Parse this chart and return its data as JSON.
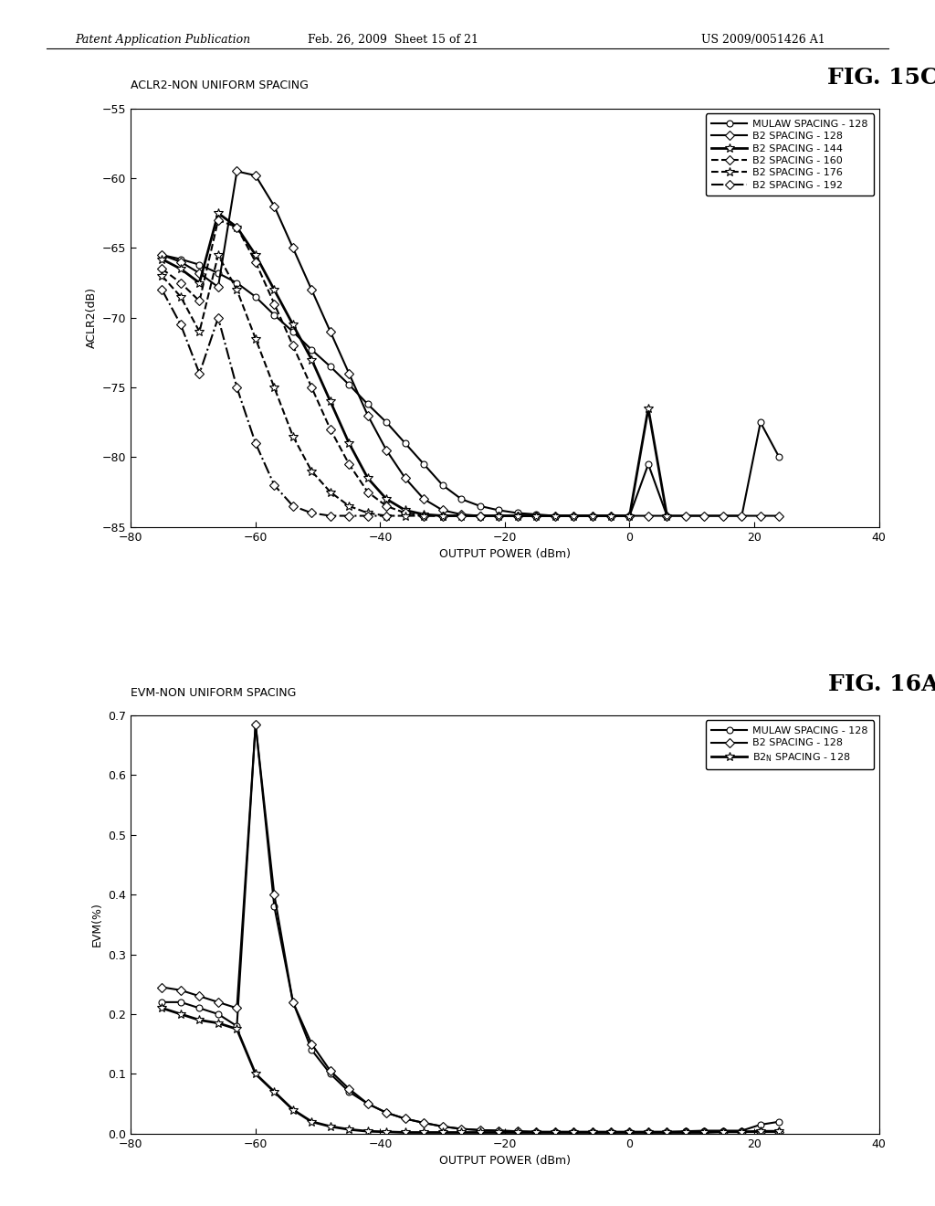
{
  "fig_width": 10.24,
  "fig_height": 13.2,
  "bg_color": "#ffffff",
  "header_left": "Patent Application Publication",
  "header_mid": "Feb. 26, 2009  Sheet 15 of 21",
  "header_right": "US 2009/0051426 A1",
  "plot1": {
    "title": "ACLR2-NON UNIFORM SPACING",
    "fig_label": "FIG. 15C",
    "xlabel": "OUTPUT POWER (dBm)",
    "ylabel": "ACLR2(dB)",
    "xlim": [
      -80,
      40
    ],
    "ylim": [
      -85,
      -55
    ],
    "xticks": [
      -80,
      -60,
      -40,
      -20,
      0,
      20,
      40
    ],
    "yticks": [
      -85,
      -80,
      -75,
      -70,
      -65,
      -60,
      -55
    ],
    "series": [
      {
        "label": "MULAW SPACING - 128",
        "linestyle": "-",
        "marker": "o",
        "color": "#000000",
        "linewidth": 1.5,
        "markersize": 5,
        "x": [
          -75,
          -72,
          -69,
          -66,
          -63,
          -60,
          -57,
          -54,
          -51,
          -48,
          -45,
          -42,
          -39,
          -36,
          -33,
          -30,
          -27,
          -24,
          -21,
          -18,
          -15,
          -12,
          -9,
          -6,
          -3,
          0,
          3,
          6,
          9,
          12,
          15,
          18,
          21,
          24
        ],
        "y": [
          -65.5,
          -65.8,
          -66.2,
          -66.8,
          -67.5,
          -68.5,
          -69.8,
          -71.0,
          -72.3,
          -73.5,
          -74.8,
          -76.2,
          -77.5,
          -79.0,
          -80.5,
          -82.0,
          -83.0,
          -83.5,
          -83.8,
          -84.0,
          -84.1,
          -84.2,
          -84.2,
          -84.2,
          -84.2,
          -84.2,
          -80.5,
          -84.2,
          -84.2,
          -84.2,
          -84.2,
          -84.2,
          -77.5,
          -80.0
        ]
      },
      {
        "label": "B2 SPACING - 128",
        "linestyle": "-",
        "marker": "D",
        "color": "#000000",
        "linewidth": 1.5,
        "markersize": 5,
        "x": [
          -75,
          -72,
          -69,
          -66,
          -63,
          -60,
          -57,
          -54,
          -51,
          -48,
          -45,
          -42,
          -39,
          -36,
          -33,
          -30,
          -27,
          -24,
          -21,
          -18,
          -15,
          -12,
          -9,
          -6,
          -3,
          0,
          3,
          6,
          9,
          12,
          15,
          18,
          21,
          24
        ],
        "y": [
          -65.5,
          -66.0,
          -66.8,
          -67.8,
          -59.5,
          -59.8,
          -62.0,
          -65.0,
          -68.0,
          -71.0,
          -74.0,
          -77.0,
          -79.5,
          -81.5,
          -83.0,
          -83.8,
          -84.1,
          -84.2,
          -84.2,
          -84.2,
          -84.2,
          -84.2,
          -84.2,
          -84.2,
          -84.2,
          -84.2,
          -84.2,
          -84.2,
          -84.2,
          -84.2,
          -84.2,
          -84.2,
          -84.2,
          -84.2
        ]
      },
      {
        "label": "B2 SPACING - 144",
        "linestyle": "-",
        "marker": "*",
        "color": "#000000",
        "linewidth": 2.0,
        "markersize": 7,
        "x": [
          -75,
          -72,
          -69,
          -66,
          -63,
          -60,
          -57,
          -54,
          -51,
          -48,
          -45,
          -42,
          -39,
          -36,
          -33,
          -30,
          -27,
          -24,
          -21,
          -18,
          -15,
          -12,
          -9,
          -6,
          -3,
          0,
          3,
          6
        ],
        "y": [
          -65.8,
          -66.5,
          -67.5,
          -62.5,
          -63.5,
          -65.5,
          -68.0,
          -70.5,
          -73.0,
          -76.0,
          -79.0,
          -81.5,
          -83.0,
          -83.8,
          -84.1,
          -84.2,
          -84.2,
          -84.2,
          -84.2,
          -84.2,
          -84.2,
          -84.2,
          -84.2,
          -84.2,
          -84.2,
          -84.2,
          -76.5,
          -84.2
        ]
      },
      {
        "label": "B2 SPACING - 160",
        "linestyle": "--",
        "marker": "D",
        "color": "#000000",
        "linewidth": 1.5,
        "markersize": 5,
        "x": [
          -75,
          -72,
          -69,
          -66,
          -63,
          -60,
          -57,
          -54,
          -51,
          -48,
          -45,
          -42,
          -39,
          -36,
          -33,
          -30,
          -27,
          -24
        ],
        "y": [
          -66.5,
          -67.5,
          -68.8,
          -63.0,
          -63.5,
          -66.0,
          -69.0,
          -72.0,
          -75.0,
          -78.0,
          -80.5,
          -82.5,
          -83.5,
          -84.0,
          -84.2,
          -84.2,
          -84.2,
          -84.2
        ]
      },
      {
        "label": "B2 SPACING - 176",
        "linestyle": "--",
        "marker": "*",
        "color": "#000000",
        "linewidth": 1.5,
        "markersize": 7,
        "x": [
          -75,
          -72,
          -69,
          -66,
          -63,
          -60,
          -57,
          -54,
          -51,
          -48,
          -45,
          -42,
          -39,
          -36,
          -33,
          -30
        ],
        "y": [
          -67.0,
          -68.5,
          -71.0,
          -65.5,
          -68.0,
          -71.5,
          -75.0,
          -78.5,
          -81.0,
          -82.5,
          -83.5,
          -84.0,
          -84.2,
          -84.2,
          -84.2,
          -84.2
        ]
      },
      {
        "label": "B2 SPACING - 192",
        "linestyle": "-.",
        "marker": "D",
        "color": "#000000",
        "linewidth": 1.5,
        "markersize": 5,
        "x": [
          -75,
          -72,
          -69,
          -66,
          -63,
          -60,
          -57,
          -54,
          -51,
          -48,
          -45,
          -42,
          -39
        ],
        "y": [
          -68.0,
          -70.5,
          -74.0,
          -70.0,
          -75.0,
          -79.0,
          -82.0,
          -83.5,
          -84.0,
          -84.2,
          -84.2,
          -84.2,
          -84.2
        ]
      }
    ]
  },
  "plot2": {
    "title": "EVM-NON UNIFORM SPACING",
    "fig_label": "FIG. 16A",
    "xlabel": "OUTPUT POWER (dBm)",
    "ylabel": "EVM(%)",
    "xlim": [
      -80,
      40
    ],
    "ylim": [
      0,
      0.7
    ],
    "xticks": [
      -80,
      -60,
      -40,
      -20,
      0,
      20,
      40
    ],
    "yticks": [
      0.0,
      0.1,
      0.2,
      0.3,
      0.4,
      0.5,
      0.6,
      0.7
    ],
    "series": [
      {
        "label": "MULAW SPACING - 128",
        "linestyle": "-",
        "marker": "o",
        "color": "#000000",
        "linewidth": 1.5,
        "markersize": 5,
        "x": [
          -75,
          -72,
          -69,
          -66,
          -63,
          -60,
          -57,
          -54,
          -51,
          -48,
          -45,
          -42,
          -39,
          -36,
          -33,
          -30,
          -27,
          -24,
          -21,
          -18,
          -15,
          -12,
          -9,
          -6,
          -3,
          0,
          3,
          6,
          9,
          12,
          15,
          18,
          21,
          24
        ],
        "y": [
          0.22,
          0.22,
          0.21,
          0.2,
          0.18,
          0.685,
          0.38,
          0.22,
          0.14,
          0.1,
          0.07,
          0.05,
          0.035,
          0.025,
          0.018,
          0.012,
          0.008,
          0.006,
          0.005,
          0.004,
          0.003,
          0.003,
          0.003,
          0.003,
          0.003,
          0.003,
          0.003,
          0.003,
          0.004,
          0.005,
          0.005,
          0.005,
          0.015,
          0.02
        ]
      },
      {
        "label": "B2 SPACING - 128",
        "linestyle": "-",
        "marker": "D",
        "color": "#000000",
        "linewidth": 1.5,
        "markersize": 5,
        "x": [
          -75,
          -72,
          -69,
          -66,
          -63,
          -60,
          -57,
          -54,
          -51,
          -48,
          -45,
          -42,
          -39,
          -36,
          -33,
          -30,
          -27,
          -24,
          -21,
          -18,
          -15,
          -12,
          -9,
          -6,
          -3,
          0,
          3,
          6,
          9,
          12,
          15,
          18,
          21,
          24
        ],
        "y": [
          0.245,
          0.24,
          0.23,
          0.22,
          0.21,
          0.685,
          0.4,
          0.22,
          0.15,
          0.105,
          0.075,
          0.05,
          0.035,
          0.025,
          0.018,
          0.012,
          0.008,
          0.006,
          0.005,
          0.004,
          0.003,
          0.003,
          0.003,
          0.003,
          0.003,
          0.003,
          0.003,
          0.003,
          0.003,
          0.003,
          0.003,
          0.003,
          0.003,
          0.003
        ]
      },
      {
        "label": "B2_N SPACING - 128",
        "linestyle": "-",
        "marker": "*",
        "color": "#000000",
        "linewidth": 2.0,
        "markersize": 7,
        "x": [
          -75,
          -72,
          -69,
          -66,
          -63,
          -60,
          -57,
          -54,
          -51,
          -48,
          -45,
          -42,
          -39,
          -36,
          -33,
          -30,
          -27,
          -24,
          -21,
          -18,
          -15,
          -12,
          -9,
          -6,
          -3,
          0,
          3,
          6,
          9,
          12,
          15,
          18,
          21,
          24
        ],
        "y": [
          0.21,
          0.2,
          0.19,
          0.185,
          0.175,
          0.1,
          0.07,
          0.04,
          0.02,
          0.012,
          0.007,
          0.004,
          0.003,
          0.002,
          0.002,
          0.002,
          0.002,
          0.002,
          0.002,
          0.002,
          0.002,
          0.002,
          0.002,
          0.002,
          0.002,
          0.002,
          0.002,
          0.002,
          0.002,
          0.002,
          0.003,
          0.003,
          0.004,
          0.004
        ]
      }
    ]
  }
}
